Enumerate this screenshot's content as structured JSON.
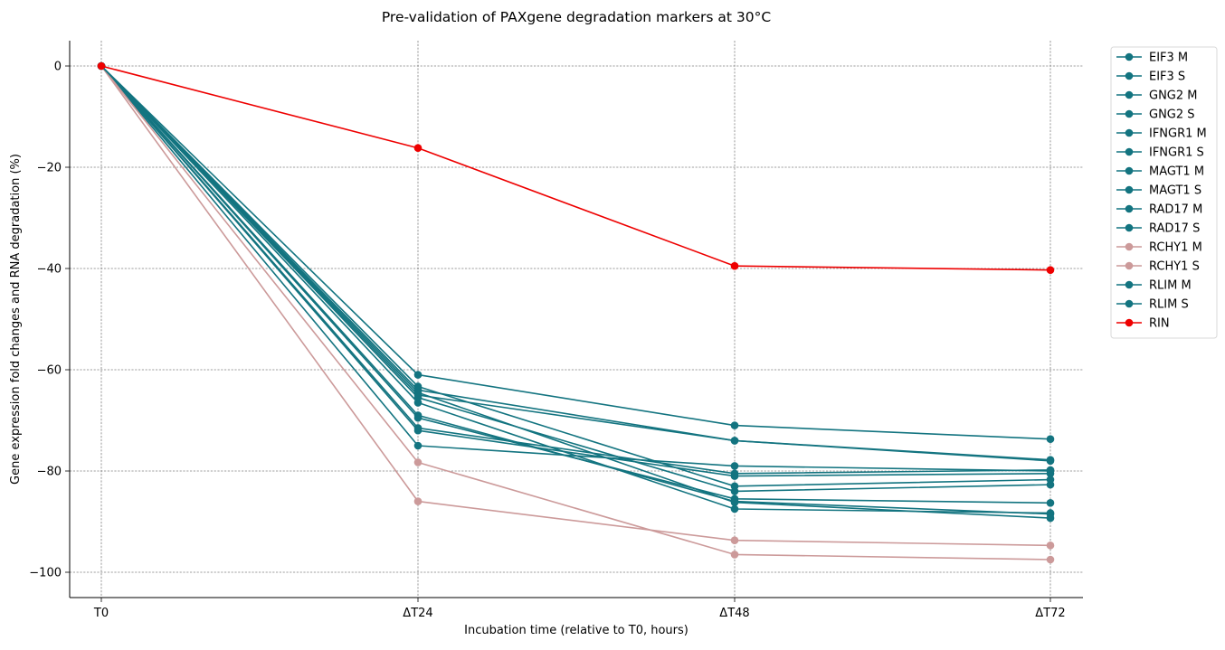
{
  "chart_data": {
    "type": "line",
    "title": "Pre-validation of PAXgene degradation markers at 30°C",
    "xlabel": "Incubation time (relative to T0, hours)",
    "ylabel": "Gene expression fold changes and RNA degradation (%)",
    "categories": [
      "T0",
      "ΔT24",
      "ΔT48",
      "ΔT72"
    ],
    "ylim": [
      -105,
      5
    ],
    "yticks": [
      0,
      -20,
      -40,
      -60,
      -80,
      -100
    ],
    "grid": true,
    "legend_position": "outside-top-right",
    "colors": {
      "teal": "#137480",
      "pink": "#cc9a9a",
      "red": "#ee0000"
    },
    "series": [
      {
        "name": "EIF3 M",
        "color": "#137480",
        "values": [
          0,
          -69.0,
          -86.0,
          -88.5
        ]
      },
      {
        "name": "EIF3 S",
        "color": "#137480",
        "values": [
          0,
          -64.0,
          -74.0,
          -78.0
        ]
      },
      {
        "name": "GNG2 M",
        "color": "#137480",
        "values": [
          0,
          -72.0,
          -81.0,
          -80.5
        ]
      },
      {
        "name": "GNG2 S",
        "color": "#137480",
        "values": [
          0,
          -69.5,
          -85.5,
          -86.3
        ]
      },
      {
        "name": "IFNGR1 M",
        "color": "#137480",
        "values": [
          0,
          -61.0,
          -71.0,
          -73.7
        ]
      },
      {
        "name": "IFNGR1 S",
        "color": "#137480",
        "values": [
          0,
          -65.0,
          -74.0,
          -77.8
        ]
      },
      {
        "name": "MAGT1 M",
        "color": "#137480",
        "values": [
          0,
          -63.3,
          -83.0,
          -81.7
        ]
      },
      {
        "name": "MAGT1 S",
        "color": "#137480",
        "values": [
          0,
          -75.0,
          -79.0,
          -80.0
        ]
      },
      {
        "name": "RAD17 M",
        "color": "#137480",
        "values": [
          0,
          -66.5,
          -87.5,
          -88.3
        ]
      },
      {
        "name": "RAD17 S",
        "color": "#137480",
        "values": [
          0,
          -71.5,
          -80.5,
          -79.8
        ]
      },
      {
        "name": "RCHY1 M",
        "color": "#cc9a9a",
        "values": [
          0,
          -78.3,
          -96.5,
          -97.5
        ]
      },
      {
        "name": "RCHY1 S",
        "color": "#cc9a9a",
        "values": [
          0,
          -86.0,
          -93.7,
          -94.7
        ]
      },
      {
        "name": "RLIM M",
        "color": "#137480",
        "values": [
          0,
          -64.5,
          -86.2,
          -89.3
        ]
      },
      {
        "name": "RLIM S",
        "color": "#137480",
        "values": [
          0,
          -65.5,
          -84.0,
          -82.7
        ]
      },
      {
        "name": "RIN",
        "color": "#ee0000",
        "values": [
          0,
          -16.2,
          -39.5,
          -40.3
        ]
      }
    ]
  }
}
